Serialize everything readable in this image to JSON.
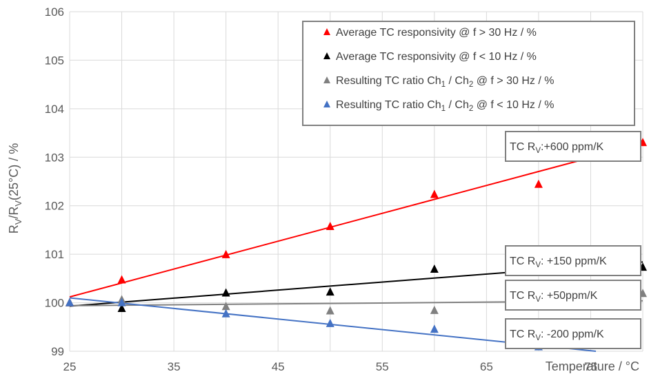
{
  "chart_data": {
    "type": "scatter",
    "title": "",
    "xlabel": "Temperature / °C",
    "ylabel_parts": [
      "R",
      "V",
      "/R",
      "V",
      "(25°C) / %"
    ],
    "xlim": [
      25,
      80
    ],
    "ylim": [
      99,
      106
    ],
    "x_ticks": [
      25,
      35,
      45,
      55,
      65,
      75
    ],
    "y_ticks": [
      99,
      100,
      101,
      102,
      103,
      104,
      105,
      106
    ],
    "grid": true,
    "legend_position": "top-right",
    "series": [
      {
        "name_parts": [
          "Average TC responsivity @ f > 30 Hz / %"
        ],
        "color": "#ff0000",
        "marker": "triangle",
        "x": [
          25,
          30,
          40,
          50,
          60,
          70,
          80
        ],
        "y": [
          100.0,
          100.47,
          100.99,
          101.57,
          102.23,
          102.44,
          103.3
        ],
        "trend": {
          "x": [
            25,
            80
          ],
          "y": [
            100.12,
            103.28
          ]
        }
      },
      {
        "name_parts": [
          "Average TC responsivity @ f < 10 Hz / %"
        ],
        "color": "#000000",
        "marker": "triangle",
        "x": [
          25,
          30,
          40,
          50,
          60,
          70,
          80
        ],
        "y": [
          100.0,
          99.88,
          100.2,
          100.22,
          100.69,
          100.7,
          100.73
        ],
        "trend": {
          "x": [
            25,
            80
          ],
          "y": [
            99.93,
            100.84
          ]
        }
      },
      {
        "name_parts": [
          "Resulting TC ratio Ch",
          "1",
          " / Ch",
          "2",
          " @ f > 30 Hz / %"
        ],
        "color": "#808080",
        "marker": "triangle",
        "x": [
          25,
          30,
          40,
          50,
          60,
          70,
          80
        ],
        "y": [
          100.0,
          100.06,
          99.92,
          99.83,
          99.84,
          100.06,
          100.19
        ],
        "trend": {
          "x": [
            25,
            80
          ],
          "y": [
            99.94,
            100.04
          ]
        }
      },
      {
        "name_parts": [
          "Resulting TC ratio Ch",
          "1",
          " / Ch",
          "2",
          " @ f < 10 Hz / %"
        ],
        "color": "#4472c4",
        "marker": "triangle",
        "x": [
          25,
          30,
          40,
          50,
          60,
          70
        ],
        "y": [
          100.0,
          100.0,
          99.77,
          99.57,
          99.45,
          99.09
        ],
        "trend": {
          "x": [
            25,
            75.5
          ],
          "y": [
            100.1,
            99.0
          ]
        }
      }
    ],
    "annotations": [
      {
        "parts": [
          "TC R",
          "V",
          ":+600 ppm/K"
        ]
      },
      {
        "parts": [
          "TC R",
          "V",
          ": +150 ppm/K"
        ]
      },
      {
        "parts": [
          "TC R",
          "V",
          ": +50ppm/K"
        ]
      },
      {
        "parts": [
          "TC R",
          "V",
          ": -200 ppm/K"
        ]
      }
    ]
  }
}
